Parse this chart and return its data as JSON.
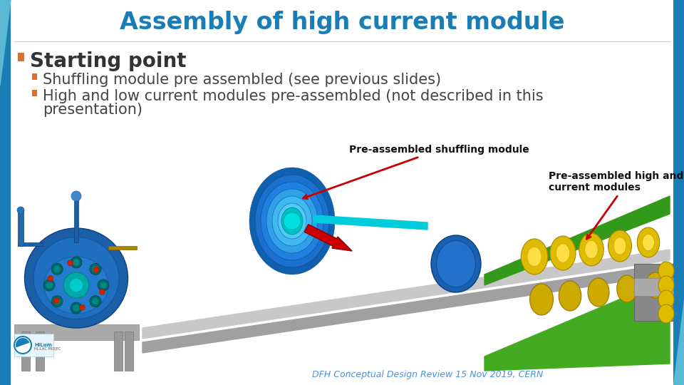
{
  "title": "Assembly of high current module",
  "title_color": "#1a7db5",
  "title_fontsize": 24,
  "title_fontweight": "bold",
  "bg_color": "#ffffff",
  "left_bar_color": "#2a7db5",
  "bullet1": "Starting point",
  "bullet1_color": "#333333",
  "bullet1_fontsize": 20,
  "bullet1_fontweight": "bold",
  "bullet1_marker_color": "#e07020",
  "sub_bullet1": "Shuffling module pre assembled (see previous slides)",
  "sub_bullet_color": "#444444",
  "sub_bullet_fontsize": 15,
  "sub_bullet_marker_color": "#e07020",
  "annotation1": "Pre-assembled shuffling module",
  "annotation2": "Pre-assembled high and low\ncurrent modules",
  "annotation_color": "#111111",
  "annotation_fontsize": 10,
  "annotation_fontweight": "bold",
  "footer": "DFH Conceptual Design Review 15 Nov 2019, CERN",
  "footer_color": "#4a90d9",
  "footer_fontsize": 9,
  "arrow_color": "#cc0000"
}
